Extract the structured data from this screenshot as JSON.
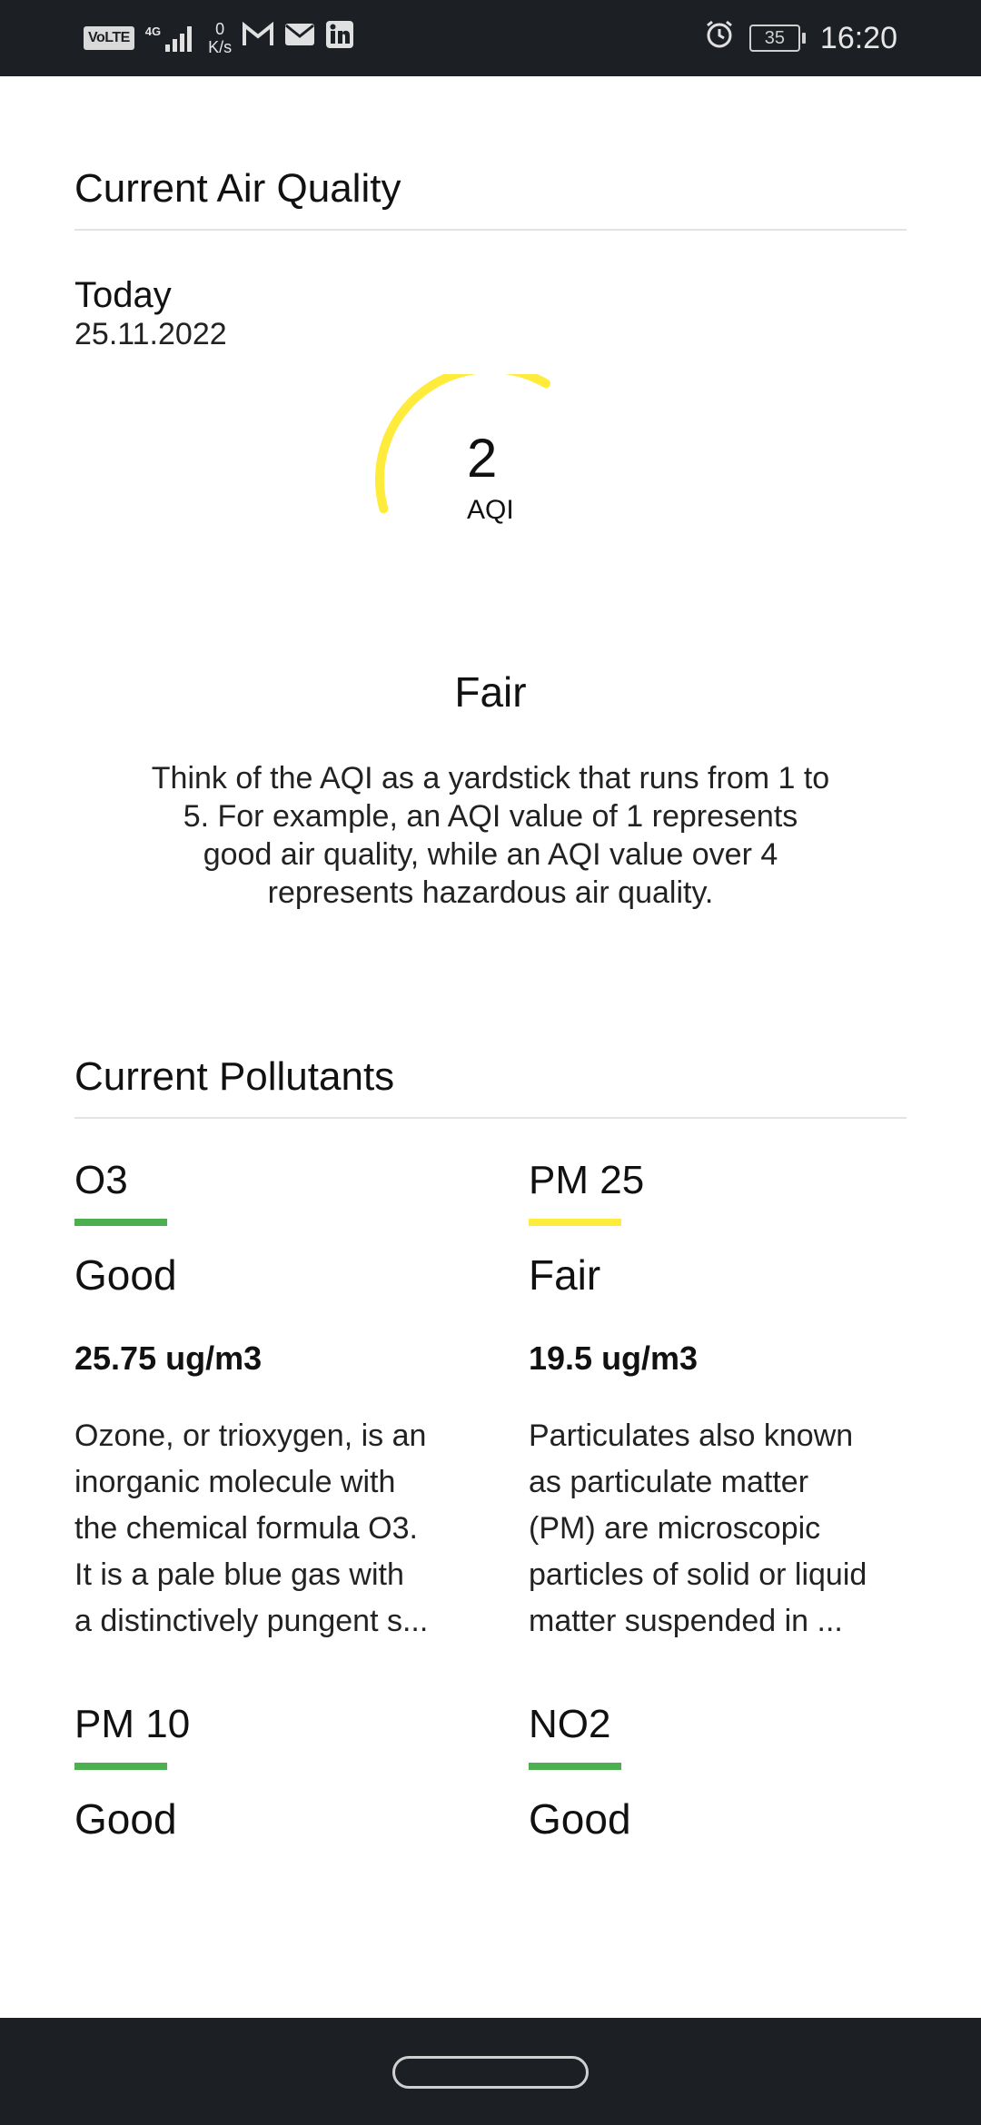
{
  "status_bar": {
    "volte": "VoLTE",
    "network": "4G",
    "speed_value": "0",
    "speed_unit": "K/s",
    "battery": "35",
    "time": "16:20"
  },
  "air_quality": {
    "title": "Current Air Quality",
    "day_label": "Today",
    "date": "25.11.2022",
    "aqi_value": "2",
    "aqi_unit": "AQI",
    "aqi_level": "Fair",
    "gauge_fraction": 0.4,
    "gauge_color": "#ffeb3b",
    "description": "Think of the AQI as a yardstick that runs from 1 to 5. For example, an AQI value of 1 represents good air quality, while an AQI value over 4 represents hazardous air quality."
  },
  "pollutants": {
    "title": "Current Pollutants",
    "items": [
      {
        "name": "O3",
        "level": "Good",
        "color": "#4caf50",
        "value": "25.75 ug/m3",
        "description": "Ozone, or trioxygen, is an inorganic molecule with the chemical formula O3. It is a pale blue gas with a distinctively pungent s..."
      },
      {
        "name": "PM 25",
        "level": "Fair",
        "color": "#ffeb3b",
        "value": "19.5 ug/m3",
        "description": "Particulates also known as particulate matter (PM) are microscopic particles of solid or liquid matter suspended in ..."
      },
      {
        "name": "PM 10",
        "level": "Good",
        "color": "#4caf50"
      },
      {
        "name": "NO2",
        "level": "Good",
        "color": "#4caf50"
      }
    ]
  }
}
